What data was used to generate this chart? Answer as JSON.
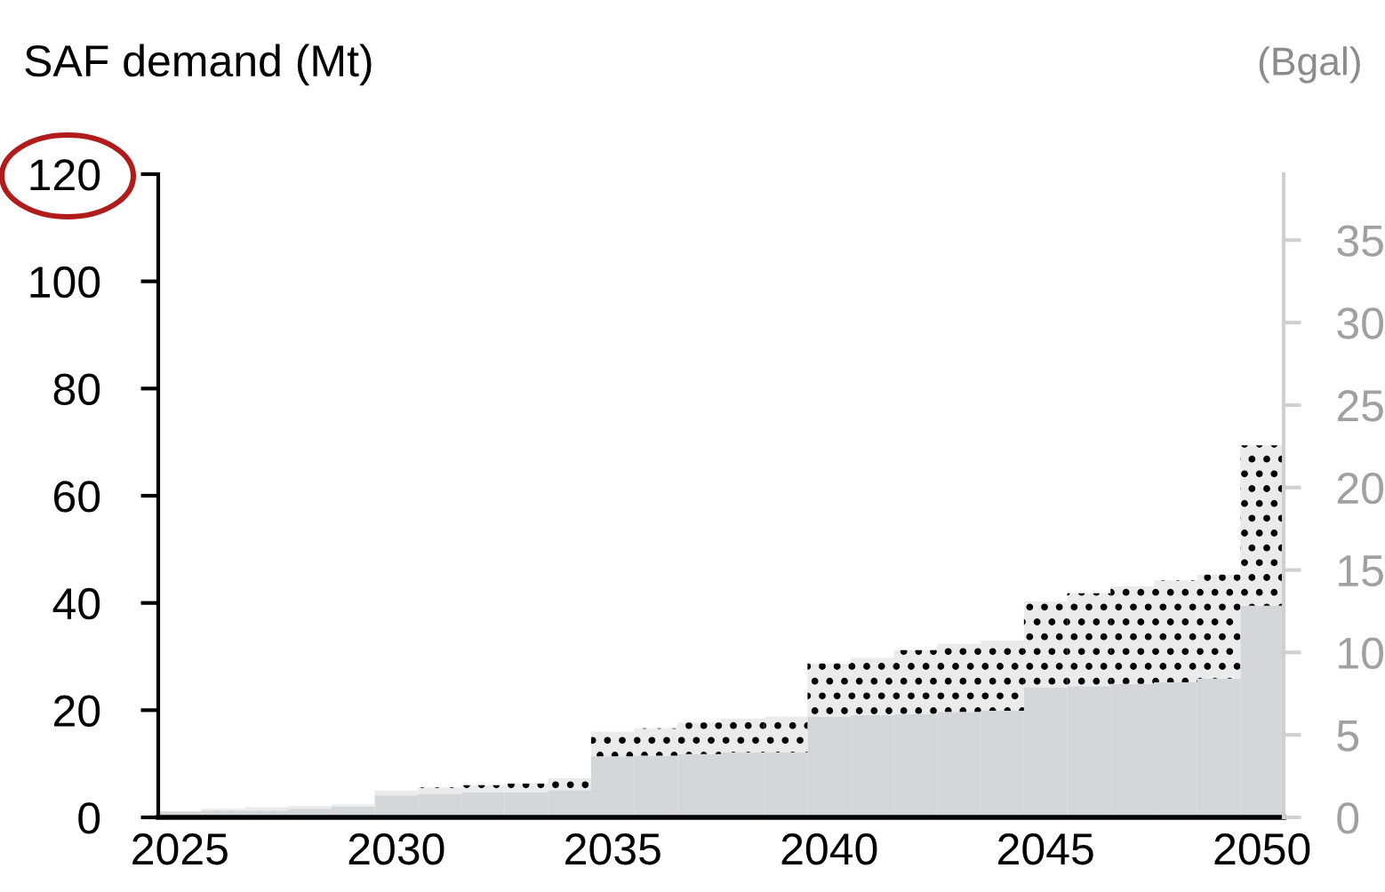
{
  "chart_data": {
    "type": "bar",
    "stacked": true,
    "ylabel": "SAF demand (Mt)",
    "y2label": "(Bgal)",
    "categories": [
      "2025",
      null,
      null,
      null,
      null,
      "2030",
      null,
      null,
      null,
      null,
      "2035",
      null,
      null,
      null,
      null,
      "2040",
      null,
      null,
      null,
      null,
      "2045",
      null,
      null,
      null,
      null,
      "2050"
    ],
    "series": [
      {
        "color": "#d5d6d8",
        "values": [
          1.1,
          1.3,
          1.3,
          1.6,
          2.0,
          4.1,
          4.3,
          4.7,
          4.7,
          5.1,
          11.4,
          11.5,
          11.8,
          12.1,
          12.1,
          18.8,
          19.1,
          19.3,
          19.7,
          19.9,
          24.2,
          24.5,
          24.9,
          25.2,
          25.9,
          39.5
        ]
      },
      {
        "color": "#ebebeb",
        "values": [
          0,
          0.3,
          0.6,
          0.5,
          0.4,
          0.9,
          1.3,
          1.3,
          1.6,
          2.2,
          4.6,
          5.1,
          5.9,
          6.3,
          6.7,
          9.9,
          10.7,
          11.9,
          12.7,
          13.1,
          16.1,
          17.3,
          18.2,
          19.0,
          19.4,
          29.9
        ]
      }
    ],
    "ylim": [
      0,
      120
    ],
    "yticks": [
      0,
      20,
      40,
      60,
      80,
      100,
      120
    ],
    "y2lim": [
      0,
      39
    ],
    "y2ticks": [
      0,
      5,
      10,
      15,
      20,
      25,
      30,
      35
    ],
    "grid": false,
    "legend": false
  }
}
